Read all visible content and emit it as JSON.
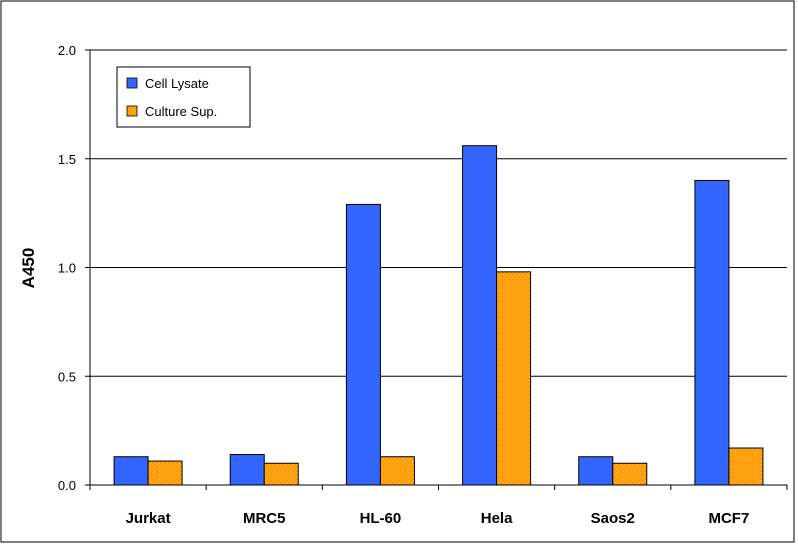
{
  "chart_data": {
    "type": "bar",
    "title": "",
    "xlabel": "",
    "ylabel": "A450",
    "ylim": [
      0,
      2.0
    ],
    "yticks": [
      "0.0",
      "0.5",
      "1.0",
      "1.5",
      "2.0"
    ],
    "grid": true,
    "legend_position": "top-left",
    "categories": [
      "Jurkat",
      "MRC5",
      "HL-60",
      "Hela",
      "Saos2",
      "MCF7"
    ],
    "series": [
      {
        "name": "Cell Lysate",
        "color": "#3366ff",
        "values": [
          0.13,
          0.14,
          1.29,
          1.56,
          0.13,
          1.4
        ]
      },
      {
        "name": "Culture Sup.",
        "color": "#ff9900",
        "values": [
          0.11,
          0.1,
          0.13,
          0.98,
          0.1,
          0.17
        ]
      }
    ]
  }
}
